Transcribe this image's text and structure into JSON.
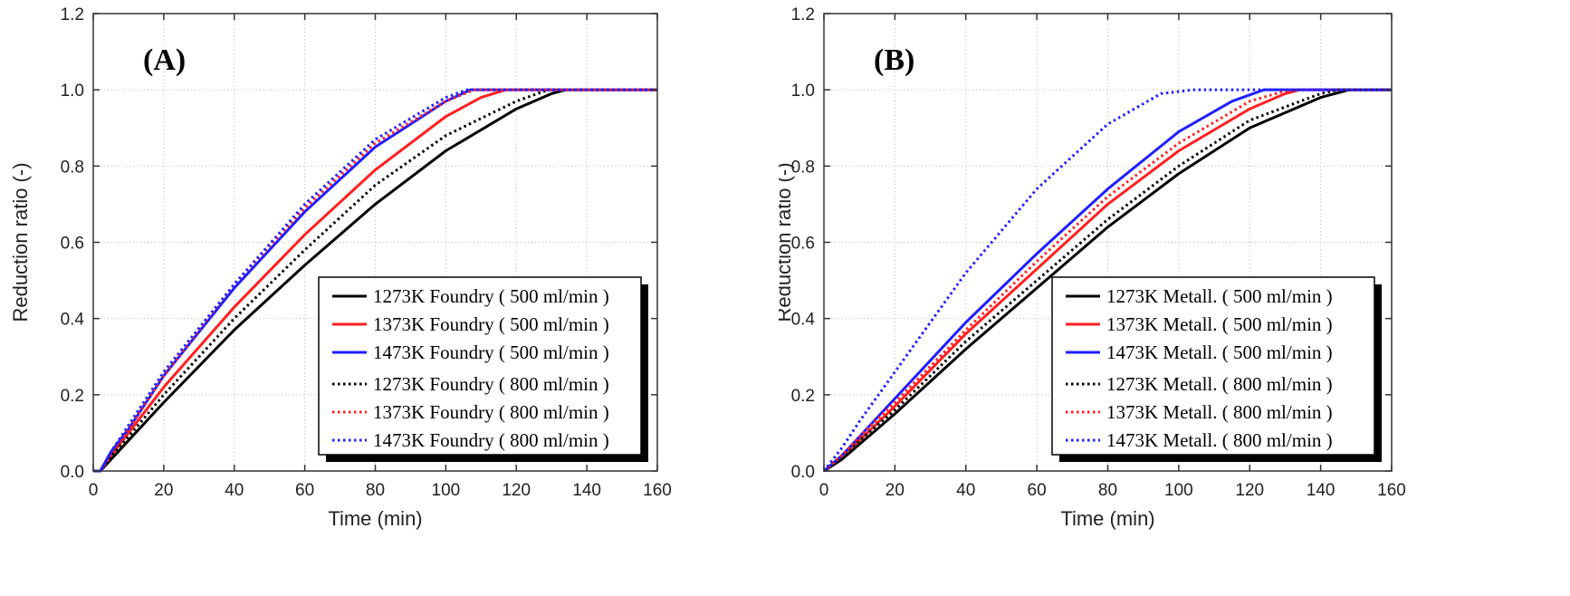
{
  "chart_data": [
    {
      "type": "line",
      "panel_label": "(A)",
      "xlabel": "Time (min)",
      "ylabel": "Reduction ratio (-)",
      "xlim": [
        0,
        160
      ],
      "ylim": [
        0,
        1.2
      ],
      "xticks": [
        "0",
        "20",
        "40",
        "60",
        "80",
        "100",
        "120",
        "140",
        "160"
      ],
      "yticks": [
        "0.0",
        "0.2",
        "0.4",
        "0.6",
        "0.8",
        "1.0",
        "1.2"
      ],
      "grid": true,
      "legend_position": "bottom-right",
      "series": [
        {
          "name": "1273K Foundry ( 500 ml/min )",
          "color": "#000000",
          "style": "solid",
          "x": [
            0,
            2,
            5,
            10,
            20,
            40,
            60,
            80,
            100,
            120,
            130,
            134,
            160
          ],
          "y": [
            0,
            0,
            0.03,
            0.08,
            0.18,
            0.37,
            0.54,
            0.7,
            0.84,
            0.95,
            0.99,
            1.0,
            1.0
          ]
        },
        {
          "name": "1373K Foundry ( 500 ml/min )",
          "color": "#ff2020",
          "style": "solid",
          "x": [
            0,
            2,
            5,
            10,
            20,
            40,
            60,
            80,
            100,
            110,
            117,
            160
          ],
          "y": [
            0,
            0,
            0.04,
            0.1,
            0.22,
            0.43,
            0.62,
            0.79,
            0.93,
            0.98,
            1.0,
            1.0
          ]
        },
        {
          "name": "1473K Foundry ( 500 ml/min )",
          "color": "#1f1fff",
          "style": "solid",
          "x": [
            0,
            2,
            5,
            10,
            20,
            40,
            60,
            80,
            100,
            107,
            160
          ],
          "y": [
            0,
            0,
            0.05,
            0.11,
            0.25,
            0.48,
            0.68,
            0.85,
            0.97,
            1.0,
            1.0
          ]
        },
        {
          "name": "1273K Foundry ( 800 ml/min )",
          "color": "#000000",
          "style": "dotted",
          "x": [
            0,
            2,
            5,
            10,
            20,
            40,
            60,
            80,
            100,
            120,
            129,
            160
          ],
          "y": [
            0,
            0,
            0.04,
            0.09,
            0.2,
            0.4,
            0.58,
            0.75,
            0.88,
            0.97,
            1.0,
            1.0
          ]
        },
        {
          "name": "1373K Foundry ( 800 ml/min )",
          "color": "#ff2020",
          "style": "dotted",
          "x": [
            0,
            2,
            5,
            10,
            20,
            40,
            60,
            80,
            100,
            108,
            160
          ],
          "y": [
            0,
            0,
            0.05,
            0.11,
            0.25,
            0.49,
            0.69,
            0.86,
            0.97,
            1.0,
            1.0
          ]
        },
        {
          "name": "1473K Foundry ( 800 ml/min )",
          "color": "#1f1fff",
          "style": "dotted",
          "x": [
            0,
            2,
            5,
            10,
            20,
            40,
            60,
            80,
            100,
            106,
            160
          ],
          "y": [
            0,
            0,
            0.05,
            0.12,
            0.26,
            0.49,
            0.7,
            0.87,
            0.98,
            1.0,
            1.0
          ]
        }
      ]
    },
    {
      "type": "line",
      "panel_label": "(B)",
      "xlabel": "Time (min)",
      "ylabel": "Reduction ratio (-)",
      "xlim": [
        0,
        160
      ],
      "ylim": [
        0,
        1.2
      ],
      "xticks": [
        "0",
        "20",
        "40",
        "60",
        "80",
        "100",
        "120",
        "140",
        "160"
      ],
      "yticks": [
        "0.0",
        "0.2",
        "0.4",
        "0.6",
        "0.8",
        "1.0",
        "1.2"
      ],
      "grid": true,
      "legend_position": "bottom-right",
      "series": [
        {
          "name": "1273K Metall. ( 500 ml/min )",
          "color": "#000000",
          "style": "solid",
          "x": [
            0,
            5,
            10,
            20,
            40,
            60,
            80,
            100,
            120,
            140,
            148,
            160
          ],
          "y": [
            0,
            0.03,
            0.07,
            0.15,
            0.32,
            0.48,
            0.64,
            0.78,
            0.9,
            0.98,
            1.0,
            1.0
          ]
        },
        {
          "name": "1373K Metall. ( 500 ml/min )",
          "color": "#ff2020",
          "style": "solid",
          "x": [
            0,
            5,
            10,
            20,
            40,
            60,
            80,
            100,
            120,
            130,
            134,
            160
          ],
          "y": [
            0,
            0.04,
            0.08,
            0.17,
            0.36,
            0.53,
            0.7,
            0.84,
            0.95,
            0.99,
            1.0,
            1.0
          ]
        },
        {
          "name": "1473K Metall. ( 500 ml/min )",
          "color": "#1f1fff",
          "style": "solid",
          "x": [
            0,
            5,
            10,
            20,
            40,
            60,
            80,
            100,
            115,
            124,
            160
          ],
          "y": [
            0,
            0.04,
            0.09,
            0.19,
            0.39,
            0.57,
            0.74,
            0.89,
            0.97,
            1.0,
            1.0
          ]
        },
        {
          "name": "1273K Metall. ( 800 ml/min )",
          "color": "#000000",
          "style": "dotted",
          "x": [
            0,
            5,
            10,
            20,
            40,
            60,
            80,
            100,
            120,
            140,
            145,
            160
          ],
          "y": [
            0,
            0.04,
            0.08,
            0.16,
            0.34,
            0.5,
            0.66,
            0.8,
            0.92,
            0.99,
            1.0,
            1.0
          ]
        },
        {
          "name": "1373K Metall. ( 800 ml/min )",
          "color": "#ff2020",
          "style": "dotted",
          "x": [
            0,
            5,
            10,
            20,
            40,
            60,
            80,
            100,
            120,
            131,
            160
          ],
          "y": [
            0,
            0.04,
            0.09,
            0.18,
            0.37,
            0.55,
            0.72,
            0.86,
            0.97,
            1.0,
            1.0
          ]
        },
        {
          "name": "1473K Metall. ( 800 ml/min )",
          "color": "#1f1fff",
          "style": "dotted",
          "x": [
            0,
            5,
            10,
            20,
            40,
            60,
            80,
            95,
            104,
            160
          ],
          "y": [
            0,
            0.06,
            0.13,
            0.26,
            0.52,
            0.74,
            0.91,
            0.99,
            1.0,
            1.0
          ]
        }
      ]
    }
  ]
}
